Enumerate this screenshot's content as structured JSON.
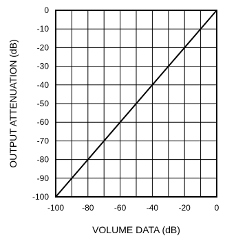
{
  "chart_data": {
    "type": "line",
    "title": "",
    "xlabel": "VOLUME DATA (dB)",
    "ylabel": "OUTPUT ATTENUATION (dB)",
    "xlim": [
      -100,
      0
    ],
    "ylim": [
      -100,
      0
    ],
    "x_ticks": [
      -100,
      -90,
      -80,
      -70,
      -60,
      -50,
      -40,
      -30,
      -20,
      -10,
      0
    ],
    "x_tick_labels": [
      "-100",
      "-80",
      "-60",
      "-40",
      "-20",
      "0"
    ],
    "x_tick_label_values": [
      -100,
      -80,
      -60,
      -40,
      -20,
      0
    ],
    "y_ticks": [
      0,
      -10,
      -20,
      -30,
      -40,
      -50,
      -60,
      -70,
      -80,
      -90,
      -100
    ],
    "y_tick_labels": [
      "0",
      "-10",
      "-20",
      "-30",
      "-40",
      "-50",
      "-60",
      "-70",
      "-80",
      "-90",
      "-100"
    ],
    "grid": true,
    "series": [
      {
        "x": [
          -100,
          0
        ],
        "y": [
          -100,
          0
        ]
      }
    ]
  }
}
